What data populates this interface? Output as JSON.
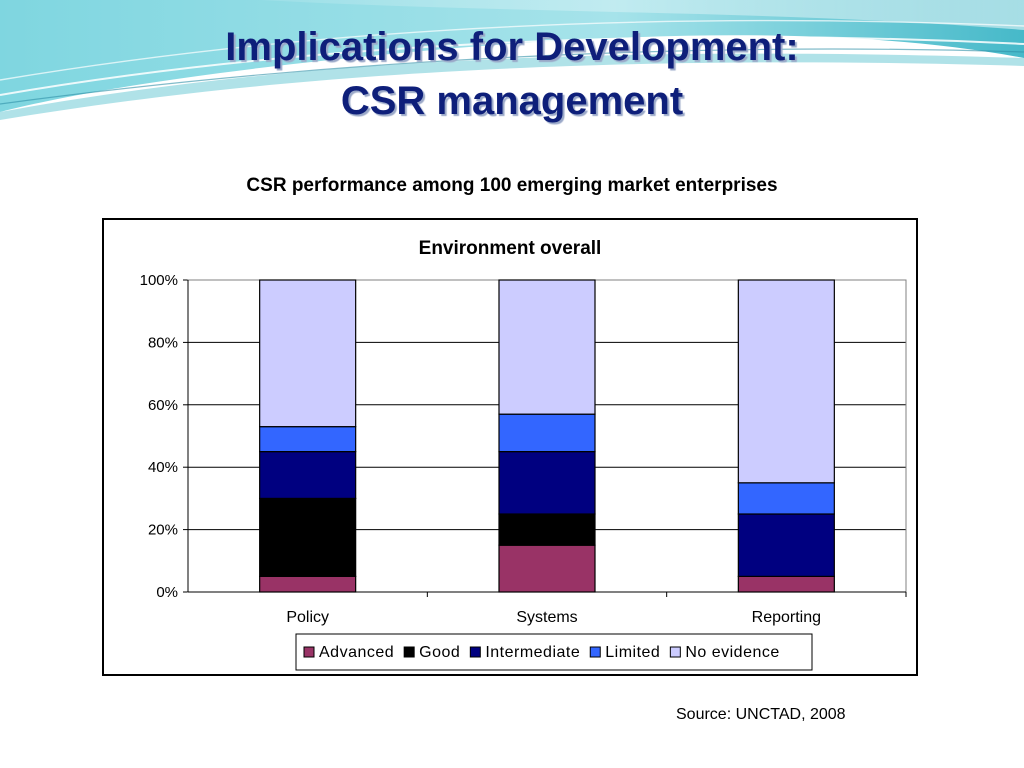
{
  "slide": {
    "title_line1": "Implications for Development:",
    "title_line2": "CSR management",
    "subtitle": "CSR performance among 100 emerging market enterprises",
    "source": "Source: UNCTAD, 2008"
  },
  "colors": {
    "title": "#0e1f7a",
    "Advanced": "#993366",
    "Good": "#000000",
    "Intermediate": "#000080",
    "Limited": "#3366ff",
    "No evidence": "#ccccff"
  },
  "chart_data": {
    "type": "bar",
    "stacked": true,
    "percent": true,
    "title": "Environment overall",
    "categories": [
      "Policy",
      "Systems",
      "Reporting"
    ],
    "series": [
      {
        "name": "Advanced",
        "values": [
          5,
          15,
          5
        ]
      },
      {
        "name": "Good",
        "values": [
          25,
          10,
          0
        ]
      },
      {
        "name": "Intermediate",
        "values": [
          15,
          20,
          20
        ]
      },
      {
        "name": "Limited",
        "values": [
          8,
          12,
          10
        ]
      },
      {
        "name": "No evidence",
        "values": [
          47,
          43,
          65
        ]
      }
    ],
    "yticks": [
      "0%",
      "20%",
      "40%",
      "60%",
      "80%",
      "100%"
    ],
    "ylim": [
      0,
      100
    ],
    "grid": true,
    "legend": "bottom",
    "xlabel": "",
    "ylabel": ""
  }
}
